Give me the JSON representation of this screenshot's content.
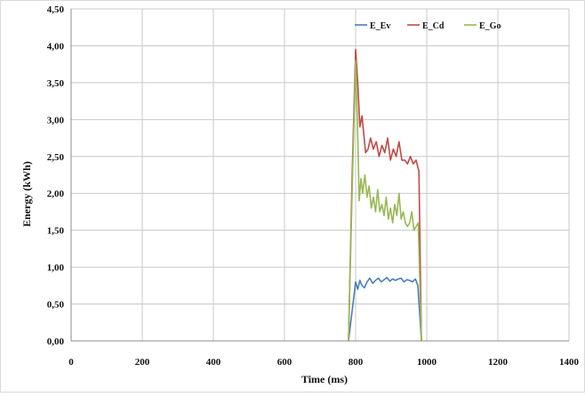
{
  "chart_data": {
    "type": "line",
    "title": "",
    "xlabel": "Time (ms)",
    "ylabel": "Energy (kWh)",
    "xlim": [
      0,
      1400
    ],
    "ylim": [
      0,
      4.5
    ],
    "x_ticks": [
      "0",
      "200",
      "400",
      "600",
      "800",
      "1000",
      "1200",
      "1400"
    ],
    "x_tick_values": [
      0,
      200,
      400,
      600,
      800,
      1000,
      1200,
      1400
    ],
    "y_ticks": [
      "0,00",
      "0,50",
      "1,00",
      "1,50",
      "2,00",
      "2,50",
      "3,00",
      "3,50",
      "4,00",
      "4,50"
    ],
    "y_tick_values": [
      0,
      0.5,
      1,
      1.5,
      2,
      2.5,
      3,
      3.5,
      4,
      4.5
    ],
    "grid": true,
    "legend_position": "top-right",
    "series": [
      {
        "name": "E_Ev",
        "color": "#4a7ebb",
        "x": [
          780,
          790,
          800,
          806,
          812,
          818,
          825,
          832,
          840,
          848,
          856,
          864,
          872,
          880,
          888,
          896,
          904,
          912,
          920,
          928,
          936,
          944,
          952,
          960,
          968,
          975,
          985
        ],
        "y": [
          0.0,
          0.4,
          0.8,
          0.7,
          0.82,
          0.75,
          0.72,
          0.8,
          0.85,
          0.78,
          0.82,
          0.85,
          0.8,
          0.83,
          0.86,
          0.81,
          0.84,
          0.82,
          0.84,
          0.85,
          0.8,
          0.83,
          0.82,
          0.8,
          0.84,
          0.75,
          0.0
        ]
      },
      {
        "name": "E_Cd",
        "color": "#be4b48",
        "x": [
          780,
          790,
          800,
          806,
          812,
          818,
          822,
          828,
          835,
          842,
          850,
          858,
          866,
          874,
          882,
          890,
          898,
          906,
          914,
          922,
          930,
          938,
          946,
          954,
          962,
          970,
          978,
          985
        ],
        "y": [
          0.0,
          2.2,
          3.95,
          3.5,
          2.9,
          3.05,
          2.85,
          2.55,
          2.6,
          2.75,
          2.6,
          2.7,
          2.5,
          2.65,
          2.55,
          2.75,
          2.45,
          2.6,
          2.5,
          2.7,
          2.45,
          2.45,
          2.4,
          2.5,
          2.4,
          2.45,
          2.3,
          0.0
        ]
      },
      {
        "name": "E_Go",
        "color": "#98b954",
        "x": [
          780,
          790,
          800,
          805,
          810,
          815,
          820,
          826,
          832,
          838,
          844,
          850,
          856,
          862,
          868,
          874,
          880,
          886,
          892,
          898,
          904,
          910,
          916,
          922,
          928,
          934,
          940,
          946,
          952,
          958,
          964,
          970,
          976,
          985
        ],
        "y": [
          0.0,
          2.0,
          3.8,
          3.0,
          1.9,
          2.2,
          2.0,
          2.25,
          1.95,
          2.1,
          1.8,
          1.95,
          1.75,
          2.05,
          1.75,
          1.85,
          1.7,
          1.95,
          1.65,
          1.8,
          1.6,
          1.85,
          1.7,
          2.0,
          1.65,
          1.75,
          1.6,
          1.55,
          1.6,
          1.75,
          1.5,
          1.55,
          1.6,
          0.0
        ]
      }
    ]
  }
}
